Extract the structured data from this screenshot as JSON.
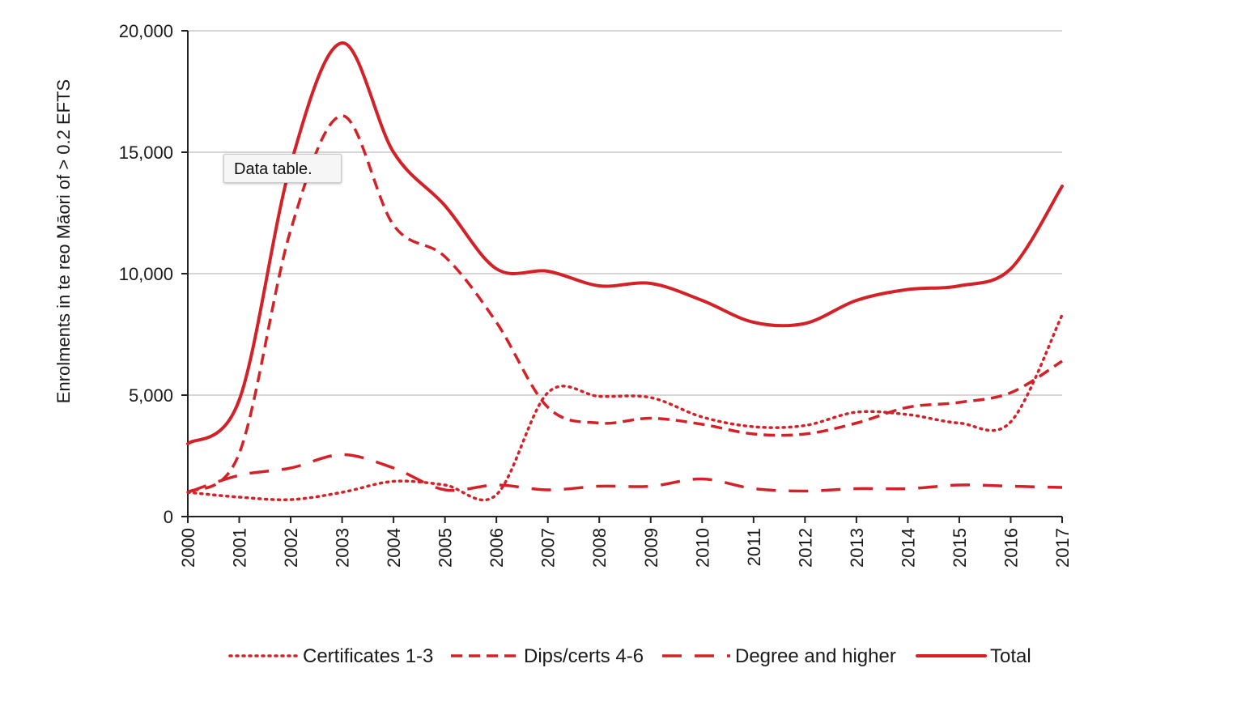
{
  "chart_data": {
    "type": "line",
    "title": "",
    "xlabel": "",
    "ylabel": "Enrolments in te reo Māori of > 0.2 EFTS",
    "ylim": [
      0,
      20000
    ],
    "yticks": [
      0,
      5000,
      10000,
      15000,
      20000
    ],
    "ytick_labels": [
      "0",
      "5,000",
      "10,000",
      "15,000",
      "20,000"
    ],
    "grid": "horizontal",
    "legend_position": "bottom",
    "color": "#d42027",
    "x": [
      "2000",
      "2001",
      "2002",
      "2003",
      "2004",
      "2005",
      "2006",
      "2007",
      "2008",
      "2009",
      "2010",
      "2011",
      "2012",
      "2013",
      "2014",
      "2015",
      "2016",
      "2017"
    ],
    "series": [
      {
        "name": "Certificates 1-3",
        "style": "dotted",
        "values": [
          1000,
          800,
          700,
          1000,
          1450,
          1300,
          900,
          5100,
          4950,
          4900,
          4100,
          3700,
          3750,
          4300,
          4200,
          3850,
          3900,
          8300
        ]
      },
      {
        "name": "Dips/certs 4-6",
        "style": "dashed",
        "values": [
          1000,
          2600,
          11800,
          16500,
          12000,
          10700,
          8000,
          4500,
          3850,
          4050,
          3800,
          3400,
          3400,
          3850,
          4500,
          4700,
          5100,
          6400
        ]
      },
      {
        "name": "Degree and higher",
        "style": "longdash",
        "values": [
          1000,
          1700,
          2000,
          2550,
          2000,
          1100,
          1300,
          1100,
          1250,
          1250,
          1550,
          1150,
          1050,
          1150,
          1150,
          1300,
          1250,
          1200
        ]
      },
      {
        "name": "Total",
        "style": "solid",
        "values": [
          3000,
          4800,
          14500,
          19500,
          15000,
          12800,
          10200,
          10100,
          9500,
          9600,
          8900,
          8000,
          7950,
          8900,
          9350,
          9500,
          10200,
          13600
        ]
      }
    ]
  },
  "tooltip": {
    "text": "Data table."
  }
}
